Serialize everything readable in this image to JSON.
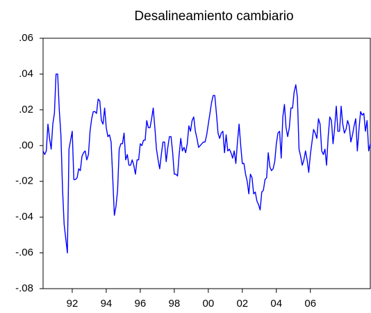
{
  "chart_data": {
    "type": "line",
    "title": "Desalineamiento cambiario",
    "color": "#0000ff",
    "values": [
      -0.003,
      -0.005,
      -0.003,
      0.012,
      0.004,
      -0.002,
      0.012,
      0.018,
      0.04,
      0.04,
      0.02,
      0.006,
      -0.024,
      -0.044,
      -0.052,
      -0.06,
      -0.002,
      0.003,
      0.008,
      -0.019,
      -0.019,
      -0.018,
      -0.013,
      -0.014,
      -0.006,
      -0.004,
      -0.003,
      -0.008,
      -0.005,
      0.008,
      0.015,
      0.019,
      0.019,
      0.018,
      0.026,
      0.025,
      0.014,
      0.012,
      0.021,
      0.01,
      0.005,
      0.006,
      0.002,
      -0.018,
      -0.039,
      -0.034,
      -0.025,
      -0.002,
      0.001,
      0.001,
      0.007,
      -0.008,
      -0.005,
      -0.011,
      -0.011,
      -0.008,
      -0.011,
      -0.016,
      -0.008,
      -0.008,
      0.001,
      0,
      0.003,
      0.003,
      0.014,
      0.01,
      0.01,
      0.015,
      0.021,
      0.01,
      -0.002,
      -0.008,
      -0.013,
      -0.005,
      0.002,
      0.002,
      -0.009,
      -0.001,
      0.005,
      0.005,
      -0.004,
      -0.016,
      -0.016,
      -0.017,
      -0.005,
      0.004,
      -0.003,
      -0.001,
      -0.004,
      0.001,
      0.011,
      0.008,
      0.014,
      0.016,
      0.008,
      0.004,
      -0.001,
      0,
      0.001,
      0.002,
      0.002,
      0.006,
      0.012,
      0.018,
      0.024,
      0.028,
      0.028,
      0.018,
      0.007,
      0.004,
      0.007,
      0.008,
      -0.004,
      0.006,
      -0.003,
      -0.002,
      -0.004,
      -0.007,
      -0.003,
      -0.01,
      0.002,
      0.012,
      0,
      -0.01,
      -0.01,
      -0.016,
      -0.02,
      -0.027,
      -0.016,
      -0.018,
      -0.027,
      -0.026,
      -0.031,
      -0.033,
      -0.036,
      -0.026,
      -0.025,
      -0.019,
      -0.018,
      -0.004,
      -0.012,
      -0.014,
      -0.013,
      -0.009,
      0.001,
      0.007,
      0.008,
      -0.007,
      0.016,
      0.023,
      0.01,
      0.005,
      0.01,
      0.021,
      0.021,
      0.03,
      0.034,
      0.027,
      -0.002,
      -0.006,
      -0.011,
      -0.008,
      -0.003,
      -0.008,
      -0.015,
      -0.005,
      0.002,
      0.009,
      0.007,
      0.004,
      0.015,
      0.012,
      -0.003,
      -0.005,
      -0.002,
      -0.011,
      0.005,
      0.016,
      0.014,
      0.001,
      0.01,
      0.022,
      0.008,
      0.008,
      0.022,
      0.012,
      0.007,
      0.009,
      0.014,
      0.011,
      0.002,
      0.006,
      0.011,
      0.015,
      -0.003,
      0.009,
      0.019,
      0.017,
      0.018,
      0.008,
      0.014,
      -0.003,
      0.001
    ],
    "xlim": [
      0,
      202
    ],
    "xticks": [
      {
        "value": 18,
        "label": "92"
      },
      {
        "value": 39,
        "label": "94"
      },
      {
        "value": 60,
        "label": "96"
      },
      {
        "value": 81,
        "label": "98"
      },
      {
        "value": 102,
        "label": "00"
      },
      {
        "value": 123,
        "label": "02"
      },
      {
        "value": 144,
        "label": "04"
      },
      {
        "value": 165,
        "label": "06"
      }
    ],
    "ylim": [
      -0.08,
      0.06
    ],
    "yticks": [
      {
        "value": 0.06,
        "label": ".06"
      },
      {
        "value": 0.04,
        "label": ".04"
      },
      {
        "value": 0.02,
        "label": ".02"
      },
      {
        "value": 0,
        "label": ".00"
      },
      {
        "value": -0.02,
        "label": "-.02"
      },
      {
        "value": -0.04,
        "label": "-.04"
      },
      {
        "value": -0.06,
        "label": "-.06"
      },
      {
        "value": -0.08,
        "label": "-.08"
      }
    ]
  }
}
